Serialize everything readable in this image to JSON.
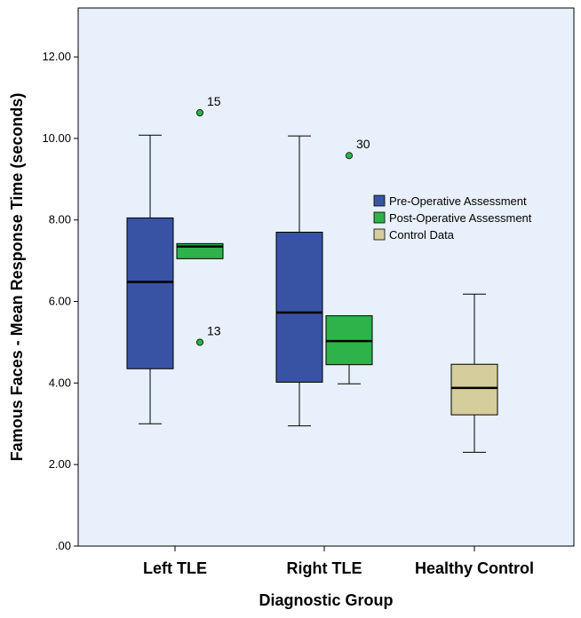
{
  "chart_data": {
    "type": "boxplot",
    "xlabel": "Diagnostic Group",
    "ylabel": "Famous Faces - Mean Response Time (seconds)",
    "ylim": [
      0,
      13.2
    ],
    "yticks": [
      {
        "value": 0,
        "label": ".00"
      },
      {
        "value": 2,
        "label": "2.00"
      },
      {
        "value": 4,
        "label": "4.00"
      },
      {
        "value": 6,
        "label": "6.00"
      },
      {
        "value": 8,
        "label": "8.00"
      },
      {
        "value": 10,
        "label": "10.00"
      },
      {
        "value": 12,
        "label": "12.00"
      }
    ],
    "categories": [
      "Left TLE",
      "Right TLE",
      "Healthy Control"
    ],
    "series": [
      {
        "name": "Pre-Operative Assessment",
        "color": "#3953a4"
      },
      {
        "name": "Post-Operative Assessment",
        "color": "#2db34a"
      },
      {
        "name": "Control Data",
        "color": "#d5cd9c"
      }
    ],
    "boxes": [
      {
        "category": 0,
        "series": 0,
        "min": 3.0,
        "q1": 4.35,
        "median": 6.48,
        "q3": 8.05,
        "max": 10.08,
        "outliers": []
      },
      {
        "category": 0,
        "series": 1,
        "min": 7.05,
        "q1": 7.05,
        "median": 7.35,
        "q3": 7.42,
        "max": 7.42,
        "outliers": [
          {
            "value": 10.63,
            "label": "15"
          },
          {
            "value": 5.0,
            "label": "13"
          }
        ]
      },
      {
        "category": 1,
        "series": 0,
        "min": 2.95,
        "q1": 4.02,
        "median": 5.73,
        "q3": 7.7,
        "max": 10.06,
        "outliers": []
      },
      {
        "category": 1,
        "series": 1,
        "min": 3.98,
        "q1": 4.45,
        "median": 5.03,
        "q3": 5.65,
        "max": 5.65,
        "outliers": [
          {
            "value": 9.58,
            "label": "30"
          }
        ]
      },
      {
        "category": 2,
        "series": 2,
        "min": 2.3,
        "q1": 3.22,
        "median": 3.88,
        "q3": 4.46,
        "max": 6.18,
        "outliers": []
      }
    ],
    "legend_position": "right"
  }
}
